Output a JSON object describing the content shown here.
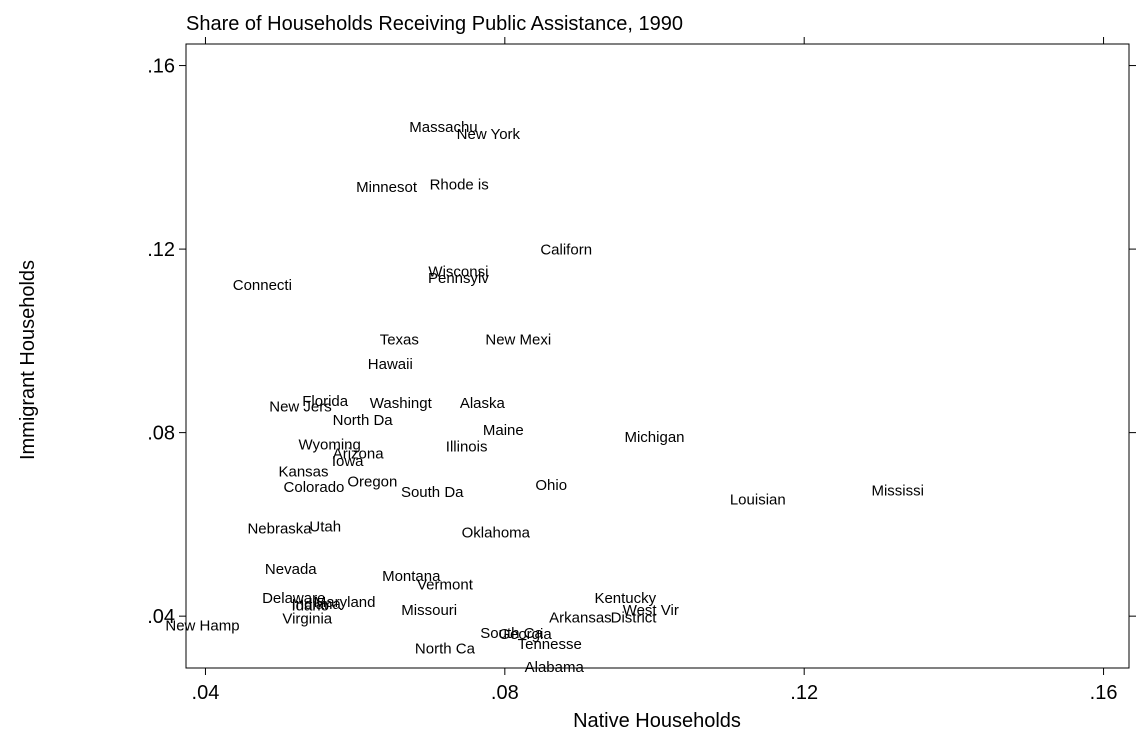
{
  "chart_data": {
    "type": "scatter",
    "title": "Share of Households Receiving Public Assistance, 1990",
    "xlabel": "Native Households",
    "ylabel": "Immigrant Households",
    "xlim": [
      0.0374,
      0.1634
    ],
    "ylim": [
      0.0287,
      0.1647
    ],
    "x_ticks": [
      ".04",
      ".08",
      ".12",
      ".16"
    ],
    "y_ticks": [
      ".04",
      ".08",
      ".12",
      ".16"
    ],
    "grid": false,
    "marker": "label-only",
    "points": [
      {
        "label": "Massachu",
        "x": 0.0718,
        "y": 0.1466
      },
      {
        "label": "New York",
        "x": 0.0778,
        "y": 0.1451
      },
      {
        "label": "Minnesot",
        "x": 0.0642,
        "y": 0.1335
      },
      {
        "label": "Rhode is",
        "x": 0.0739,
        "y": 0.1341
      },
      {
        "label": "Californ",
        "x": 0.0882,
        "y": 0.1199
      },
      {
        "label": "Wisconsi",
        "x": 0.0738,
        "y": 0.1151
      },
      {
        "label": "Pennsylv",
        "x": 0.0738,
        "y": 0.1137
      },
      {
        "label": "Connecti",
        "x": 0.0476,
        "y": 0.1122
      },
      {
        "label": "Texas",
        "x": 0.0659,
        "y": 0.1003
      },
      {
        "label": "New Mexi",
        "x": 0.0818,
        "y": 0.1003
      },
      {
        "label": "Hawaii",
        "x": 0.0647,
        "y": 0.095
      },
      {
        "label": "Florida",
        "x": 0.056,
        "y": 0.0869
      },
      {
        "label": "Washingt",
        "x": 0.0661,
        "y": 0.0865
      },
      {
        "label": "Alaska",
        "x": 0.077,
        "y": 0.0865
      },
      {
        "label": "New Jers",
        "x": 0.0527,
        "y": 0.0857
      },
      {
        "label": "North Da",
        "x": 0.061,
        "y": 0.0827
      },
      {
        "label": "Maine",
        "x": 0.0798,
        "y": 0.0806
      },
      {
        "label": "Michigan",
        "x": 0.1,
        "y": 0.079
      },
      {
        "label": "Wyoming",
        "x": 0.0566,
        "y": 0.0774
      },
      {
        "label": "Illinois",
        "x": 0.0749,
        "y": 0.077
      },
      {
        "label": "Arizona",
        "x": 0.0604,
        "y": 0.0755
      },
      {
        "label": "Iowa",
        "x": 0.059,
        "y": 0.0738
      },
      {
        "label": "Kansas",
        "x": 0.0531,
        "y": 0.0715
      },
      {
        "label": "Oregon",
        "x": 0.0623,
        "y": 0.0694
      },
      {
        "label": "Colorado",
        "x": 0.0545,
        "y": 0.0682
      },
      {
        "label": "Ohio",
        "x": 0.0862,
        "y": 0.0686
      },
      {
        "label": "South Da",
        "x": 0.0703,
        "y": 0.0671
      },
      {
        "label": "Mississi",
        "x": 0.1325,
        "y": 0.0674
      },
      {
        "label": "Louisian",
        "x": 0.1138,
        "y": 0.0654
      },
      {
        "label": "Nebraska",
        "x": 0.0499,
        "y": 0.0591
      },
      {
        "label": "Utah",
        "x": 0.056,
        "y": 0.0595
      },
      {
        "label": "Oklahoma",
        "x": 0.0788,
        "y": 0.0582
      },
      {
        "label": "Nevada",
        "x": 0.0514,
        "y": 0.0503
      },
      {
        "label": "Montana",
        "x": 0.0675,
        "y": 0.0488
      },
      {
        "label": "Vermont",
        "x": 0.072,
        "y": 0.0469
      },
      {
        "label": "Kentucky",
        "x": 0.0961,
        "y": 0.044
      },
      {
        "label": "Delaware",
        "x": 0.0518,
        "y": 0.044
      },
      {
        "label": "Idaho",
        "x": 0.054,
        "y": 0.0423
      },
      {
        "label": "Indiana",
        "x": 0.0548,
        "y": 0.0426
      },
      {
        "label": "Maryland",
        "x": 0.0586,
        "y": 0.0431
      },
      {
        "label": "Missouri",
        "x": 0.0699,
        "y": 0.0413
      },
      {
        "label": "West Vir",
        "x": 0.0995,
        "y": 0.0413
      },
      {
        "label": "District",
        "x": 0.0972,
        "y": 0.0397
      },
      {
        "label": "Arkansas",
        "x": 0.0901,
        "y": 0.0397
      },
      {
        "label": "Virginia",
        "x": 0.0536,
        "y": 0.0395
      },
      {
        "label": "New Hamp",
        "x": 0.0396,
        "y": 0.038
      },
      {
        "label": "South Ca",
        "x": 0.0809,
        "y": 0.0363
      },
      {
        "label": "Georgia",
        "x": 0.0827,
        "y": 0.0361
      },
      {
        "label": "Tennesse",
        "x": 0.086,
        "y": 0.0339
      },
      {
        "label": "North Ca",
        "x": 0.072,
        "y": 0.033
      },
      {
        "label": "Alabama",
        "x": 0.0866,
        "y": 0.0289
      }
    ]
  }
}
